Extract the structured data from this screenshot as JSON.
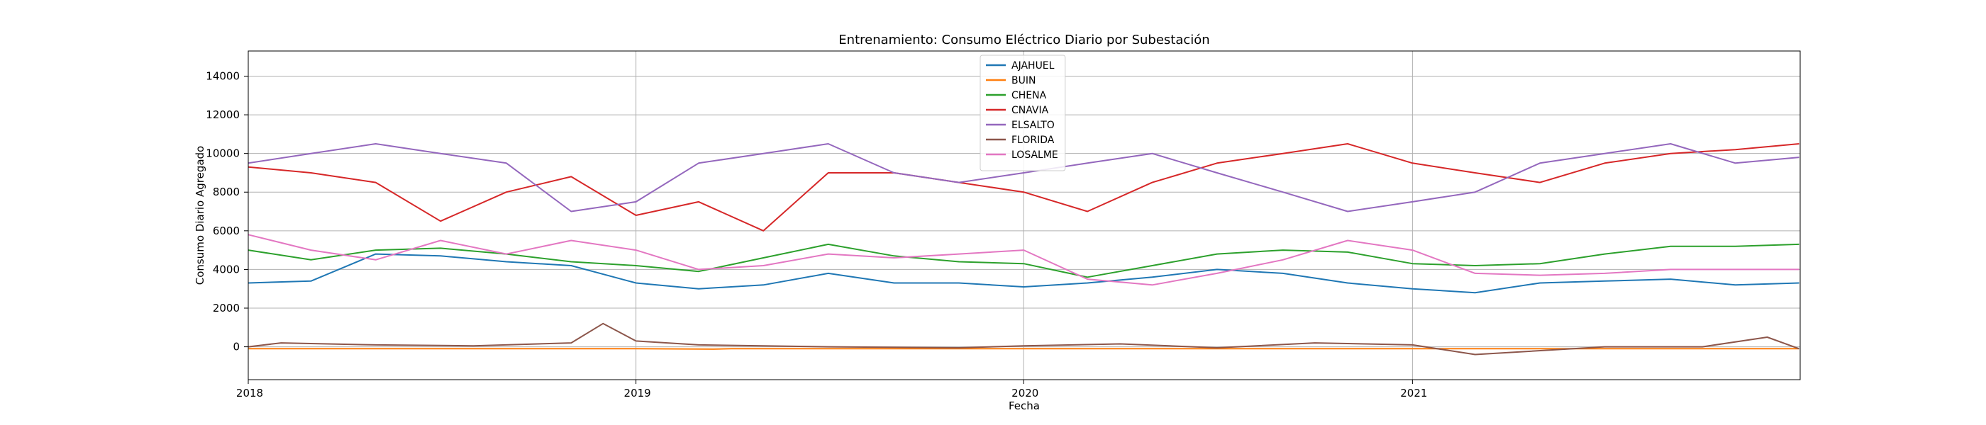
{
  "chart_data": {
    "type": "line",
    "title": "Entrenamiento: Consumo Eléctrico Diario por Subestación",
    "xlabel": "Fecha",
    "ylabel": "Consumo Diario Agregado",
    "xlim": [
      "2018-01-01",
      "2022-01-01"
    ],
    "ylim": [
      -1700,
      15300
    ],
    "xticks": [
      "2018-01-01",
      "2019-01-01",
      "2020-01-01",
      "2021-01-01"
    ],
    "xtick_labels": [
      "2018",
      "2019",
      "2020",
      "2021"
    ],
    "yticks": [
      0,
      2000,
      4000,
      6000,
      8000,
      10000,
      12000,
      14000
    ],
    "ytick_labels": [
      "0",
      "2000",
      "4000",
      "6000",
      "8000",
      "10000",
      "12000",
      "14000"
    ],
    "grid": true,
    "legend_position": "top-center",
    "series": [
      {
        "name": "AJAHUEL",
        "color": "#1f77b4",
        "x": [
          "2018-01-01",
          "2018-03-01",
          "2018-05-01",
          "2018-07-01",
          "2018-09-01",
          "2018-11-01",
          "2019-01-01",
          "2019-03-01",
          "2019-05-01",
          "2019-07-01",
          "2019-09-01",
          "2019-11-01",
          "2020-01-01",
          "2020-03-01",
          "2020-05-01",
          "2020-07-01",
          "2020-09-01",
          "2020-11-01",
          "2021-01-01",
          "2021-03-01",
          "2021-05-01",
          "2021-07-01",
          "2021-09-01",
          "2021-11-01",
          "2021-12-31"
        ],
        "values": [
          3300,
          3400,
          4800,
          4700,
          4400,
          4200,
          3300,
          3000,
          3200,
          3800,
          3300,
          3300,
          3100,
          3300,
          3600,
          4000,
          3800,
          3300,
          3000,
          2800,
          3300,
          3400,
          3500,
          3200,
          3300
        ]
      },
      {
        "name": "BUIN",
        "color": "#ff7f0e",
        "x": [
          "2018-01-01",
          "2018-07-01",
          "2019-01-01",
          "2019-03-15",
          "2019-04-01",
          "2019-07-01",
          "2020-01-01",
          "2020-07-01",
          "2021-01-01",
          "2021-07-01",
          "2021-12-31"
        ],
        "values": [
          -100,
          -100,
          -100,
          -120,
          -100,
          -100,
          -100,
          -100,
          -100,
          -100,
          -100
        ]
      },
      {
        "name": "CHENA",
        "color": "#2ca02c",
        "x": [
          "2018-01-01",
          "2018-03-01",
          "2018-05-01",
          "2018-07-01",
          "2018-09-01",
          "2018-11-01",
          "2019-01-01",
          "2019-03-01",
          "2019-05-01",
          "2019-07-01",
          "2019-09-01",
          "2019-11-01",
          "2020-01-01",
          "2020-03-01",
          "2020-05-01",
          "2020-07-01",
          "2020-09-01",
          "2020-11-01",
          "2021-01-01",
          "2021-03-01",
          "2021-05-01",
          "2021-07-01",
          "2021-09-01",
          "2021-11-01",
          "2021-12-31"
        ],
        "values": [
          5000,
          4500,
          5000,
          5100,
          4800,
          4400,
          4200,
          3900,
          4600,
          5300,
          4700,
          4400,
          4300,
          3600,
          4200,
          4800,
          5000,
          4900,
          4300,
          4200,
          4300,
          4800,
          5200,
          5200,
          5300
        ]
      },
      {
        "name": "CNAVIA",
        "color": "#d62728",
        "x": [
          "2018-01-01",
          "2018-03-01",
          "2018-05-01",
          "2018-07-01",
          "2018-09-01",
          "2018-11-01",
          "2019-01-01",
          "2019-03-01",
          "2019-05-01",
          "2019-07-01",
          "2019-09-01",
          "2019-11-01",
          "2020-01-01",
          "2020-03-01",
          "2020-05-01",
          "2020-07-01",
          "2020-09-01",
          "2020-11-01",
          "2021-01-01",
          "2021-03-01",
          "2021-05-01",
          "2021-07-01",
          "2021-09-01",
          "2021-11-01",
          "2021-12-31"
        ],
        "values": [
          9300,
          9000,
          8500,
          6500,
          8000,
          8800,
          6800,
          7500,
          6000,
          9000,
          9000,
          8500,
          8000,
          7000,
          8500,
          9500,
          10000,
          10500,
          9500,
          9000,
          8500,
          9500,
          10000,
          10200,
          10500
        ]
      },
      {
        "name": "ELSALTO",
        "color": "#9467bd",
        "x": [
          "2018-01-01",
          "2018-03-01",
          "2018-05-01",
          "2018-07-01",
          "2018-09-01",
          "2018-11-01",
          "2019-01-01",
          "2019-03-01",
          "2019-05-01",
          "2019-07-01",
          "2019-09-01",
          "2019-11-01",
          "2020-01-01",
          "2020-03-01",
          "2020-05-01",
          "2020-07-01",
          "2020-09-01",
          "2020-11-01",
          "2021-01-01",
          "2021-03-01",
          "2021-05-01",
          "2021-07-01",
          "2021-09-01",
          "2021-11-01",
          "2021-12-31"
        ],
        "values": [
          9500,
          10000,
          10500,
          10000,
          9500,
          7000,
          7500,
          9500,
          10000,
          10500,
          9000,
          8500,
          9000,
          9500,
          10000,
          9000,
          8000,
          7000,
          7500,
          8000,
          9500,
          10000,
          10500,
          9500,
          9800
        ]
      },
      {
        "name": "FLORIDA",
        "color": "#8c564b",
        "x": [
          "2018-01-01",
          "2018-02-01",
          "2018-05-01",
          "2018-08-01",
          "2018-11-01",
          "2018-12-01",
          "2019-01-01",
          "2019-03-01",
          "2019-07-01",
          "2019-11-01",
          "2020-01-01",
          "2020-04-01",
          "2020-07-01",
          "2020-10-01",
          "2021-01-01",
          "2021-03-01",
          "2021-07-01",
          "2021-10-01",
          "2021-12-01",
          "2021-12-31"
        ],
        "values": [
          0,
          200,
          100,
          50,
          200,
          1200,
          300,
          100,
          0,
          -50,
          50,
          150,
          -50,
          200,
          100,
          -400,
          0,
          0,
          500,
          -100
        ]
      },
      {
        "name": "LOSALME",
        "color": "#e377c2",
        "x": [
          "2018-01-01",
          "2018-03-01",
          "2018-05-01",
          "2018-07-01",
          "2018-09-01",
          "2018-11-01",
          "2019-01-01",
          "2019-03-01",
          "2019-05-01",
          "2019-07-01",
          "2019-09-01",
          "2019-11-01",
          "2020-01-01",
          "2020-03-01",
          "2020-05-01",
          "2020-07-01",
          "2020-09-01",
          "2020-11-01",
          "2021-01-01",
          "2021-03-01",
          "2021-05-01",
          "2021-07-01",
          "2021-09-01",
          "2021-11-01",
          "2021-12-31"
        ],
        "values": [
          5800,
          5000,
          4500,
          5500,
          4800,
          5500,
          5000,
          4000,
          4200,
          4800,
          4600,
          4800,
          5000,
          3500,
          3200,
          3800,
          4500,
          5500,
          5000,
          3800,
          3700,
          3800,
          4000,
          4000,
          4000
        ]
      }
    ]
  }
}
